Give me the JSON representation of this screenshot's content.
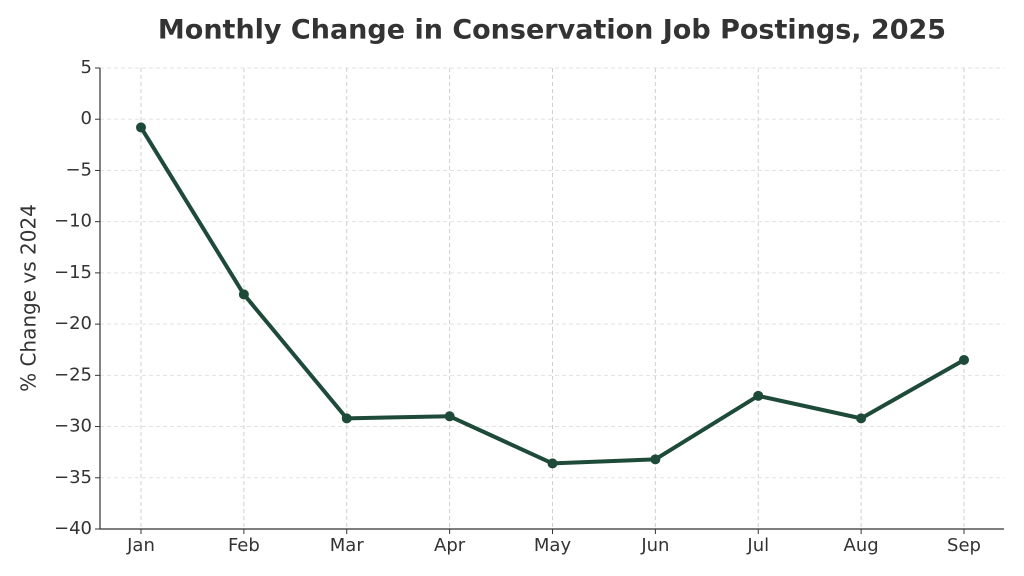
{
  "chart_data": {
    "type": "line",
    "title": "Monthly Change in Conservation Job Postings, 2025",
    "y_label": "% Change vs 2024",
    "categories": [
      "Jan",
      "Feb",
      "Mar",
      "Apr",
      "May",
      "Jun",
      "Jul",
      "Aug",
      "Sep"
    ],
    "series": [
      {
        "name": "% Change vs 2024",
        "color": "#1e4a39",
        "values": [
          -0.8,
          -17.1,
          -29.2,
          -29.0,
          -33.6,
          -33.2,
          -27.0,
          -29.2,
          -23.5
        ]
      }
    ],
    "ylim": [
      -40,
      5
    ],
    "yticks": [
      {
        "value": -40,
        "label": "−40"
      },
      {
        "value": -35,
        "label": "−35"
      },
      {
        "value": -30,
        "label": "−30"
      },
      {
        "value": -25,
        "label": "−25"
      },
      {
        "value": -20,
        "label": "−20"
      },
      {
        "value": -15,
        "label": "−15"
      },
      {
        "value": -10,
        "label": "−10"
      },
      {
        "value": -5,
        "label": "−5"
      },
      0,
      5
    ],
    "grid": true
  }
}
